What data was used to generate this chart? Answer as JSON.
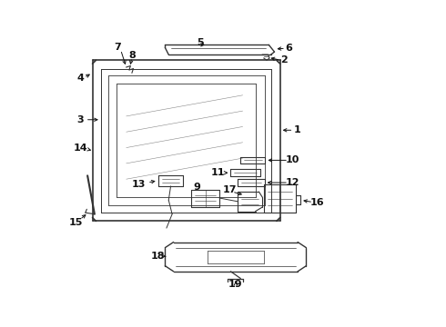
{
  "background_color": "#ffffff",
  "line_color": "#333333",
  "text_color": "#111111",
  "fig_width": 4.9,
  "fig_height": 3.6,
  "dpi": 100
}
